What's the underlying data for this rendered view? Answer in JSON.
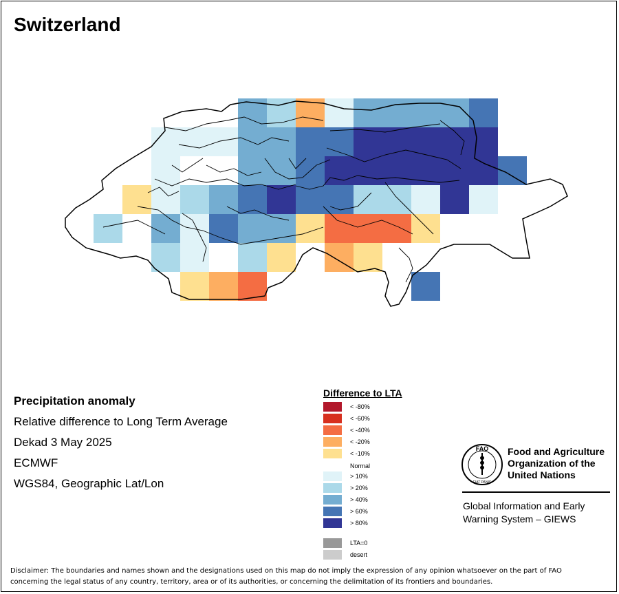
{
  "title": "Switzerland",
  "info": {
    "line1": "Precipitation anomaly",
    "line2": "Relative difference to Long Term Average",
    "line3": "Dekad 3 May 2025",
    "line4": "ECMWF",
    "line5": "WGS84, Geographic Lat/Lon"
  },
  "legend": {
    "title": "Difference to LTA",
    "items": [
      {
        "label": "< -80%",
        "color": "#b2182b"
      },
      {
        "label": "< -60%",
        "color": "#d7301f"
      },
      {
        "label": "< -40%",
        "color": "#f46d43"
      },
      {
        "label": "< -20%",
        "color": "#fdae61"
      },
      {
        "label": "< -10%",
        "color": "#fee090"
      },
      {
        "label": "Normal",
        "color": "#ffffff"
      },
      {
        "label": "> 10%",
        "color": "#e0f3f8"
      },
      {
        "label": "> 20%",
        "color": "#abd9e9"
      },
      {
        "label": "> 40%",
        "color": "#74add1"
      },
      {
        "label": "> 60%",
        "color": "#4575b4"
      },
      {
        "label": "> 80%",
        "color": "#313695"
      },
      {
        "label": "LTA=0",
        "color": "#999999"
      },
      {
        "label": "desert",
        "color": "#cccccc"
      }
    ]
  },
  "organization": {
    "name_line1": "Food and Agriculture",
    "name_line2": "Organization of the",
    "name_line3": "United Nations",
    "logo_letters": "FAO",
    "logo_motto": "FIAT PANIS",
    "system_line1": "Global Information and Early",
    "system_line2": "Warning System – GIEWS"
  },
  "disclaimer": {
    "line1": "Disclaimer: The boundaries and names shown and the designations used on this map do not imply the expression of any opinion whatsoever on the part of FAO",
    "line2": "concerning the legal status of any country, territory, area or of its authorities, or concerning the delimitation of its frontiers and boundaries."
  },
  "grid": {
    "columns": 16,
    "rows": 8,
    "cells": [
      [
        "",
        "",
        "",
        "",
        "",
        "",
        "+40",
        "+20",
        "-20",
        "+10",
        "+40",
        "+40",
        "+40",
        "+40",
        "+60",
        ""
      ],
      [
        "",
        "",
        "",
        "+10",
        "+10",
        "+10",
        "+40",
        "+40",
        "+60",
        "+60",
        "+80",
        "+80",
        "+80",
        "+80",
        "+80",
        ""
      ],
      [
        "",
        "",
        "",
        "+10",
        "",
        "",
        "+40",
        "+40",
        "+60",
        "+80",
        "+80",
        "+80",
        "+80",
        "+80",
        "+80",
        "+60"
      ],
      [
        "",
        "",
        "-10",
        "+10",
        "+20",
        "+40",
        "+60",
        "+80",
        "+60",
        "+60",
        "+20",
        "+20",
        "+10",
        "+80",
        "+10",
        ""
      ],
      [
        "",
        "+20",
        "",
        "+40",
        "+10",
        "+60",
        "+40",
        "+40",
        "-10",
        "-40",
        "-40",
        "-40",
        "-10",
        "",
        "",
        ""
      ],
      [
        "",
        "",
        "",
        "+20",
        "+10",
        "",
        "+20",
        "-10",
        "",
        "-20",
        "-10",
        "",
        "",
        "",
        "",
        ""
      ],
      [
        "",
        "",
        "",
        "",
        "-10",
        "-20",
        "-40",
        "",
        "",
        "",
        "",
        "",
        "+60",
        "",
        "",
        ""
      ],
      [
        "",
        "",
        "",
        "",
        "",
        "",
        "",
        "",
        "",
        "",
        "",
        "",
        "",
        "",
        "",
        ""
      ]
    ]
  }
}
